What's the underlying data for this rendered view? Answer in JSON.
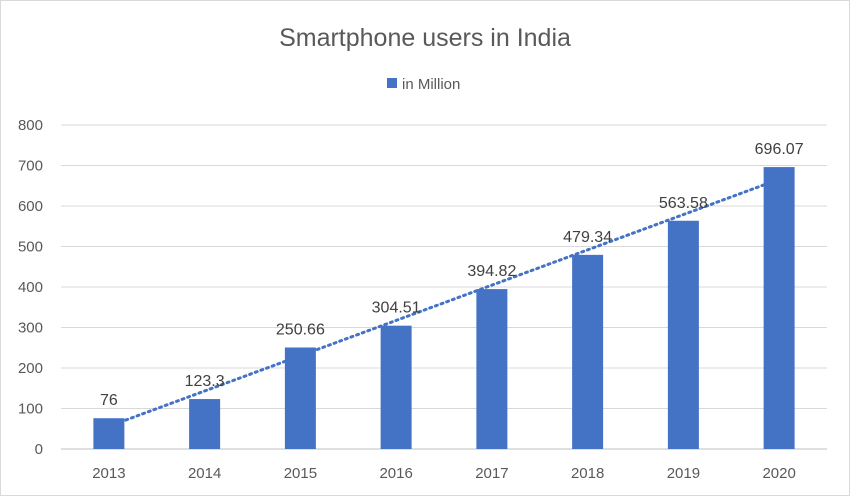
{
  "chart_data": {
    "type": "bar",
    "title": "Smartphone users in India",
    "categories": [
      "2013",
      "2014",
      "2015",
      "2016",
      "2017",
      "2018",
      "2019",
      "2020"
    ],
    "series": [
      {
        "name": "in Million",
        "values": [
          76,
          123.3,
          250.66,
          304.51,
          394.82,
          479.34,
          563.58,
          696.07
        ],
        "data_labels": [
          "76",
          "123.3",
          "250.66",
          "304.51",
          "394.82",
          "479.34",
          "563.58",
          "696.07"
        ],
        "color": "#4472c4"
      }
    ],
    "trendline": {
      "type": "linear",
      "style": "dotted",
      "color": "#4472c4"
    },
    "ylim": [
      0,
      800
    ],
    "yticks": [
      0,
      100,
      200,
      300,
      400,
      500,
      600,
      700,
      800
    ],
    "xlabel": "",
    "ylabel": "",
    "grid": true,
    "legend_position": "top"
  }
}
